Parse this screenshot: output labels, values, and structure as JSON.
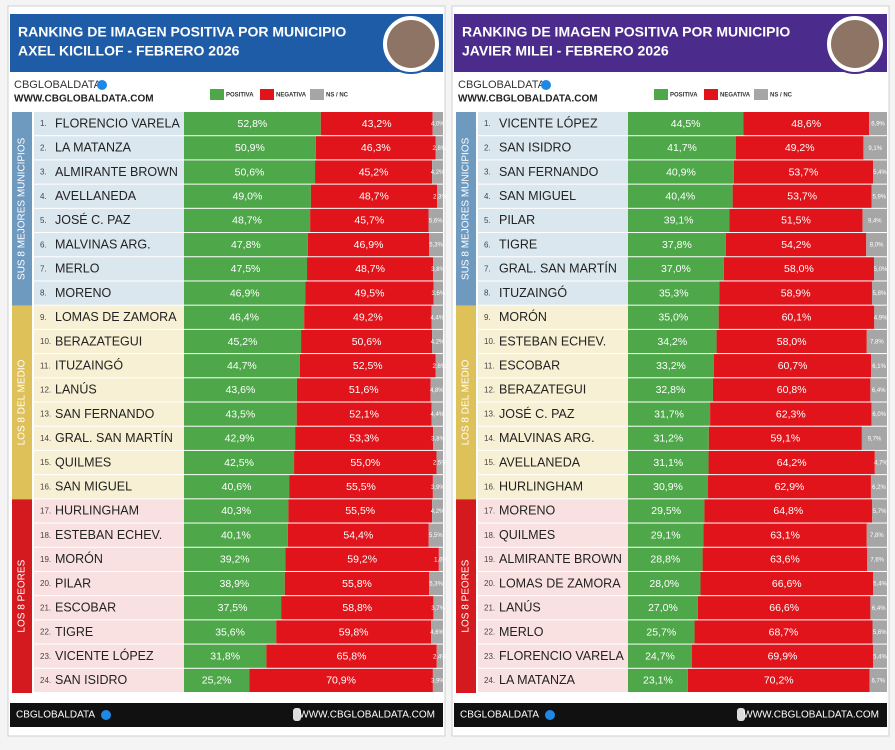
{
  "chart_data": [
    {
      "type": "bar",
      "orientation": "horizontal",
      "stacked": true,
      "title": "RANKING DE IMAGEN POSITIVA POR MUNICIPIO",
      "subtitle": "AXEL KICILLOF - FEBRERO 2026",
      "header_color": "#1f5ca8",
      "brand": "CBGLOBALDATA",
      "website": "WWW.CBGLOBALDATA.COM",
      "xlim": [
        0,
        100
      ],
      "groups": [
        {
          "label": "SUS 8 MEJORES MUNICIPIOS",
          "color": "#6f9ac0",
          "tint": "#dbe7ef"
        },
        {
          "label": "LOS 8 DEL MEDIO",
          "color": "#dfc15a",
          "tint": "#f7f0d4"
        },
        {
          "label": "LOS 8 PEORES",
          "color": "#d41a1f",
          "tint": "#f9e1e1"
        }
      ],
      "ranks": [
        "1.",
        "2.",
        "3.",
        "4.",
        "5.",
        "6.",
        "7.",
        "8.",
        "9.",
        "10.",
        "11.",
        "12.",
        "13.",
        "14.",
        "15.",
        "16.",
        "17.",
        "18.",
        "19.",
        "20.",
        "21.",
        "22.",
        "23.",
        "24."
      ],
      "categories": [
        "FLORENCIO VARELA",
        "LA MATANZA",
        "ALMIRANTE BROWN",
        "AVELLANEDA",
        "JOSÉ C. PAZ",
        "MALVINAS ARG.",
        "MERLO",
        "MORENO",
        "LOMAS DE ZAMORA",
        "BERAZATEGUI",
        "ITUZAINGÓ",
        "LANÚS",
        "SAN FERNANDO",
        "GRAL. SAN MARTÍN",
        "QUILMES",
        "SAN MIGUEL",
        "HURLINGHAM",
        "ESTEBAN ECHEV.",
        "MORÓN",
        "PILAR",
        "ESCOBAR",
        "TIGRE",
        "VICENTE LÓPEZ",
        "SAN ISIDRO"
      ],
      "series": [
        {
          "name": "POSITIVA",
          "color": "#4ea84a",
          "values": [
            52.8,
            50.9,
            50.6,
            49.0,
            48.7,
            47.8,
            47.5,
            46.9,
            46.4,
            45.2,
            44.7,
            43.6,
            43.5,
            42.9,
            42.5,
            40.6,
            40.3,
            40.1,
            39.2,
            38.9,
            37.5,
            35.6,
            31.8,
            25.2
          ],
          "value_labels": [
            "52,8%",
            "50,9%",
            "50,6%",
            "49,0%",
            "48,7%",
            "47,8%",
            "47,5%",
            "46,9%",
            "46,4%",
            "45,2%",
            "44,7%",
            "43,6%",
            "43,5%",
            "42,9%",
            "42,5%",
            "40,6%",
            "40,3%",
            "40,1%",
            "39,2%",
            "38,9%",
            "37,5%",
            "35,6%",
            "31,8%",
            "25,2%"
          ]
        },
        {
          "name": "NEGATIVA",
          "color": "#e0141a",
          "values": [
            43.2,
            46.3,
            45.2,
            48.7,
            45.7,
            46.9,
            48.7,
            49.5,
            49.2,
            50.6,
            52.5,
            51.6,
            52.1,
            53.3,
            55.0,
            55.5,
            55.5,
            54.4,
            59.2,
            55.8,
            58.8,
            59.8,
            65.8,
            70.9
          ],
          "value_labels": [
            "43,2%",
            "46,3%",
            "45,2%",
            "48,7%",
            "45,7%",
            "46,9%",
            "48,7%",
            "49,5%",
            "49,2%",
            "50,6%",
            "52,5%",
            "51,6%",
            "52,1%",
            "53,3%",
            "55,0%",
            "55,5%",
            "55,5%",
            "54,4%",
            "59,2%",
            "55,8%",
            "58,8%",
            "59,8%",
            "65,8%",
            "70,9%"
          ]
        },
        {
          "name": "NS / NC",
          "color": "#a6a6a6",
          "values": [
            4.0,
            2.8,
            4.2,
            2.3,
            5.6,
            5.3,
            3.8,
            3.6,
            4.4,
            4.2,
            2.8,
            4.8,
            4.4,
            3.8,
            2.5,
            3.9,
            4.2,
            5.5,
            1.6,
            5.3,
            3.7,
            4.6,
            2.4,
            3.9
          ],
          "value_labels": [
            "4,0%",
            "2,8%",
            "4,2%",
            "2,3%",
            "5,6%",
            "5,3%",
            "3,8%",
            "3,6%",
            "4,4%",
            "4,2%",
            "2,8%",
            "4,8%",
            "4,4%",
            "3,8%",
            "2,5%",
            "3,9%",
            "4,2%",
            "5,5%",
            "1,6%",
            "5,3%",
            "3,7%",
            "4,6%",
            "2,4%",
            "3,9%"
          ]
        }
      ]
    },
    {
      "type": "bar",
      "orientation": "horizontal",
      "stacked": true,
      "title": "RANKING DE IMAGEN POSITIVA POR MUNICIPIO",
      "subtitle": "JAVIER MILEI - FEBRERO 2026",
      "header_color": "#4b2c8c",
      "brand": "CBGLOBALDATA",
      "website": "WWW.CBGLOBALDATA.COM",
      "xlim": [
        0,
        100
      ],
      "groups": [
        {
          "label": "SUS 8 MEJORES MUNICIPIOS",
          "color": "#6f9ac0",
          "tint": "#dbe7ef"
        },
        {
          "label": "LOS 8 DEL MEDIO",
          "color": "#dfc15a",
          "tint": "#f7f0d4"
        },
        {
          "label": "LOS 8 PEORES",
          "color": "#d41a1f",
          "tint": "#f9e1e1"
        }
      ],
      "ranks": [
        "1.",
        "2.",
        "3.",
        "4.",
        "5.",
        "6.",
        "7.",
        "8.",
        "9.",
        "10.",
        "11.",
        "12.",
        "13.",
        "14.",
        "15.",
        "16.",
        "17.",
        "18.",
        "19.",
        "20.",
        "21.",
        "22.",
        "23.",
        "24."
      ],
      "categories": [
        "VICENTE LÓPEZ",
        "SAN ISIDRO",
        "SAN FERNANDO",
        "SAN MIGUEL",
        "PILAR",
        "TIGRE",
        "GRAL. SAN MARTÍN",
        "ITUZAINGÓ",
        "MORÓN",
        "ESTEBAN ECHEV.",
        "ESCOBAR",
        "BERAZATEGUI",
        "JOSÉ C. PAZ",
        "MALVINAS ARG.",
        "AVELLANEDA",
        "HURLINGHAM",
        "MORENO",
        "QUILMES",
        "ALMIRANTE BROWN",
        "LOMAS DE ZAMORA",
        "LANÚS",
        "MERLO",
        "FLORENCIO VARELA",
        "LA MATANZA"
      ],
      "series": [
        {
          "name": "POSITIVA",
          "color": "#4ea84a",
          "values": [
            44.5,
            41.7,
            40.9,
            40.4,
            39.1,
            37.8,
            37.0,
            35.3,
            35.0,
            34.2,
            33.2,
            32.8,
            31.7,
            31.2,
            31.1,
            30.9,
            29.5,
            29.1,
            28.8,
            28.0,
            27.0,
            25.7,
            24.7,
            23.1
          ],
          "value_labels": [
            "44,5%",
            "41,7%",
            "40,9%",
            "40,4%",
            "39,1%",
            "37,8%",
            "37,0%",
            "35,3%",
            "35,0%",
            "34,2%",
            "33,2%",
            "32,8%",
            "31,7%",
            "31,2%",
            "31,1%",
            "30,9%",
            "29,5%",
            "29,1%",
            "28,8%",
            "28,0%",
            "27,0%",
            "25,7%",
            "24,7%",
            "23,1%"
          ]
        },
        {
          "name": "NEGATIVA",
          "color": "#e0141a",
          "values": [
            48.6,
            49.2,
            53.7,
            53.7,
            51.5,
            54.2,
            58.0,
            58.9,
            60.1,
            58.0,
            60.7,
            60.8,
            62.3,
            59.1,
            64.2,
            62.9,
            64.8,
            63.1,
            63.6,
            66.6,
            66.6,
            68.7,
            69.9,
            70.2
          ],
          "value_labels": [
            "48,6%",
            "49,2%",
            "53,7%",
            "53,7%",
            "51,5%",
            "54,2%",
            "58,0%",
            "58,9%",
            "60,1%",
            "58,0%",
            "60,7%",
            "60,8%",
            "62,3%",
            "59,1%",
            "64,2%",
            "62,9%",
            "64,8%",
            "63,1%",
            "63,6%",
            "66,6%",
            "66,6%",
            "68,7%",
            "69,9%",
            "70,2%"
          ]
        },
        {
          "name": "NS / NC",
          "color": "#a6a6a6",
          "values": [
            6.9,
            9.1,
            5.4,
            5.9,
            9.4,
            8.0,
            5.0,
            5.8,
            4.9,
            7.8,
            6.1,
            6.4,
            6.0,
            9.7,
            4.7,
            6.2,
            5.7,
            7.8,
            7.6,
            5.4,
            6.4,
            5.6,
            5.4,
            6.7
          ],
          "value_labels": [
            "6,9%",
            "9,1%",
            "5,4%",
            "5,9%",
            "9,4%",
            "8,0%",
            "5,0%",
            "5,8%",
            "4,9%",
            "7,8%",
            "6,1%",
            "6,4%",
            "6,0%",
            "9,7%",
            "4,7%",
            "6,2%",
            "5,7%",
            "7,8%",
            "7,6%",
            "5,4%",
            "6,4%",
            "5,6%",
            "5,4%",
            "6,7%"
          ]
        }
      ]
    }
  ]
}
